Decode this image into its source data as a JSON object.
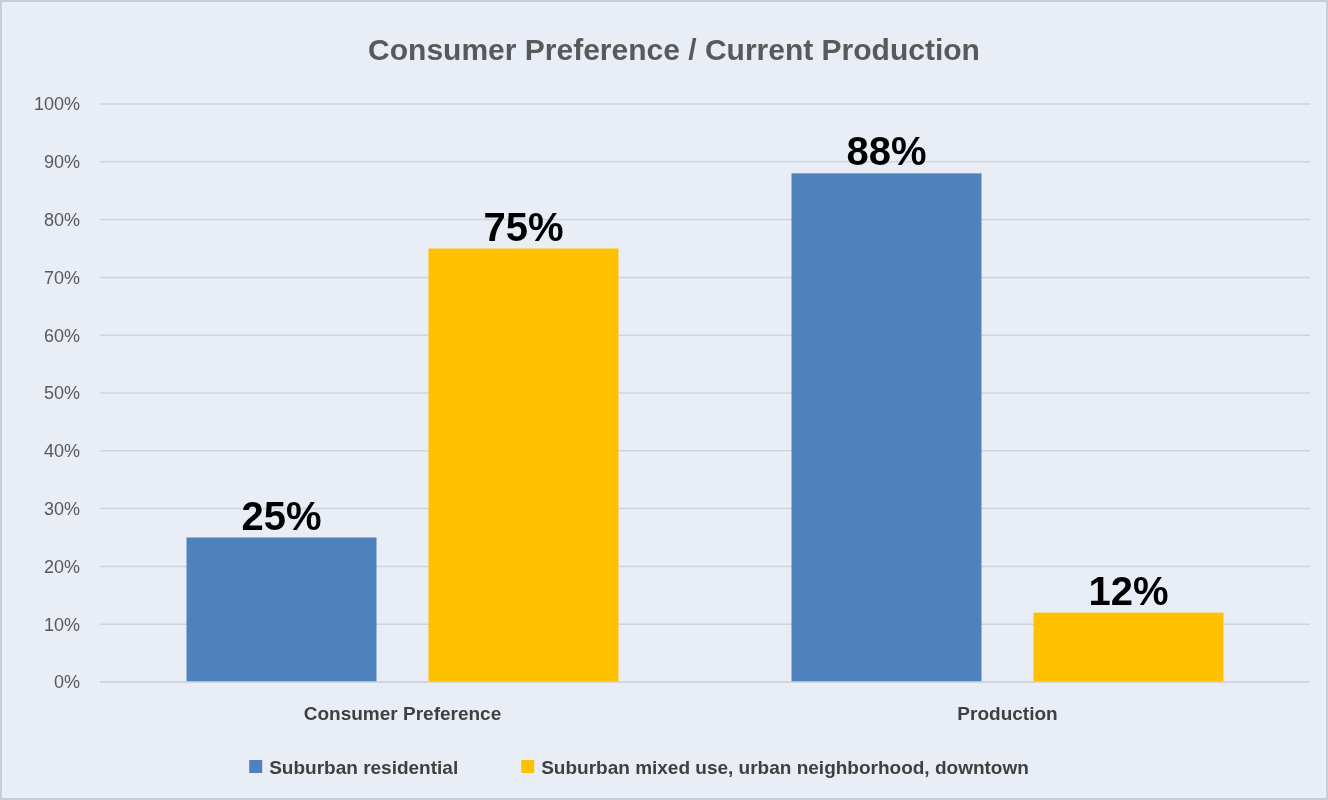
{
  "chart_data": {
    "type": "bar",
    "title": "Consumer Preference / Current Production",
    "categories": [
      "Consumer Preference",
      "Production"
    ],
    "series": [
      {
        "name": "Suburban residential",
        "color": "#4f81bd",
        "values": [
          25,
          88
        ],
        "value_labels": [
          "25%",
          "88%"
        ]
      },
      {
        "name": "Suburban mixed use, urban neighborhood, downtown",
        "color": "#ffc000",
        "values": [
          75,
          12
        ],
        "value_labels": [
          "75%",
          "12%"
        ]
      }
    ],
    "ylim": [
      0,
      100
    ],
    "yticks": [
      {
        "value": 0,
        "label": "0%"
      },
      {
        "value": 10,
        "label": "10%"
      },
      {
        "value": 20,
        "label": "20%"
      },
      {
        "value": 30,
        "label": "30%"
      },
      {
        "value": 40,
        "label": "40%"
      },
      {
        "value": 50,
        "label": "50%"
      },
      {
        "value": 60,
        "label": "60%"
      },
      {
        "value": 70,
        "label": "70%"
      },
      {
        "value": 80,
        "label": "80%"
      },
      {
        "value": 90,
        "label": "90%"
      },
      {
        "value": 100,
        "label": "100%"
      }
    ],
    "grid": "y",
    "legend": "bottom"
  }
}
